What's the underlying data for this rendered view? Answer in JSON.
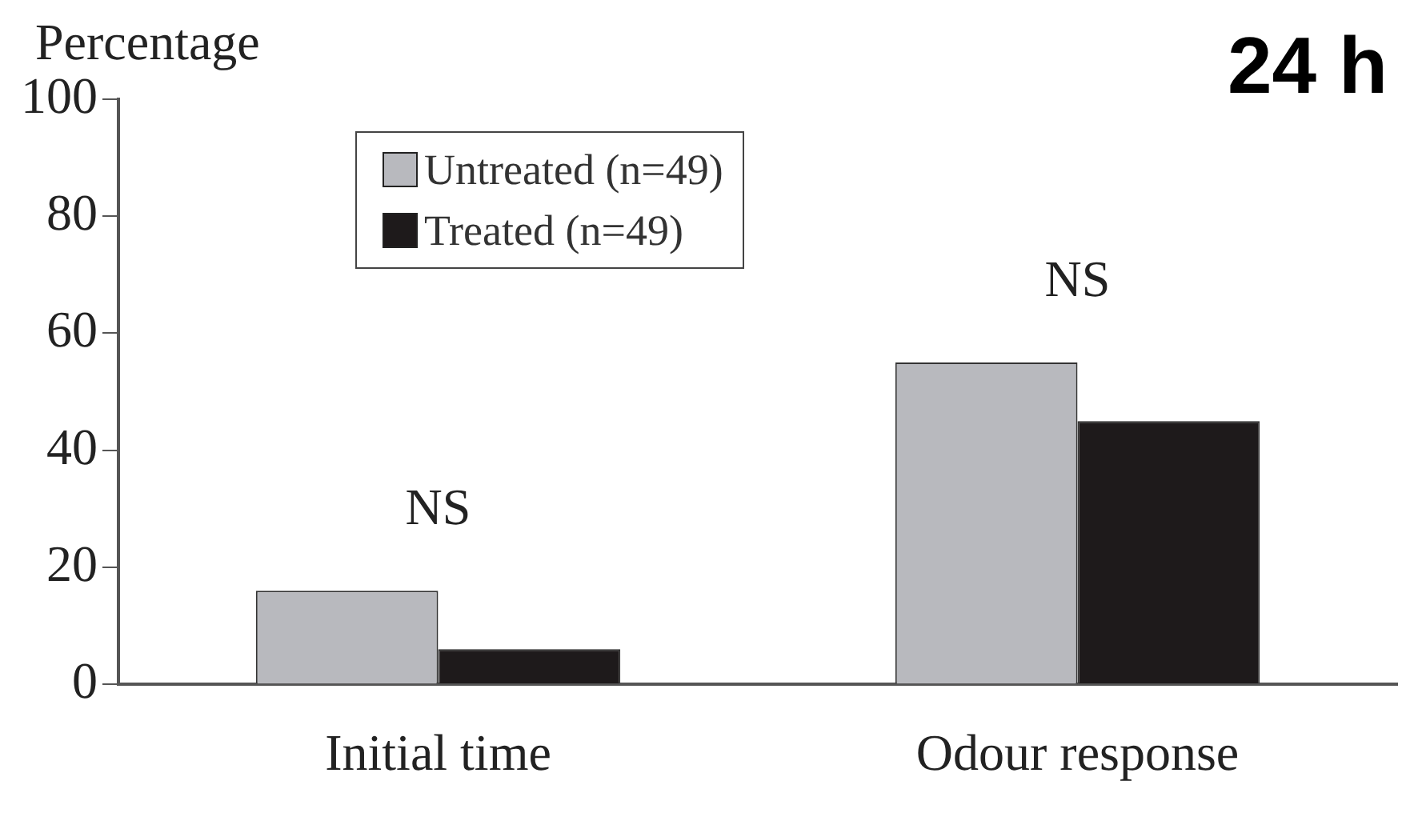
{
  "chart_data": {
    "type": "bar",
    "title": "24 h",
    "ylabel": "Percentage",
    "categories": [
      "Initial time",
      "Odour response"
    ],
    "series": [
      {
        "name": "Untreated (n=49)",
        "color": "#b8b9be",
        "values": [
          16,
          55
        ]
      },
      {
        "name": "Treated (n=49)",
        "color": "#1e1a1b",
        "values": [
          6,
          45
        ]
      }
    ],
    "ylim": [
      0,
      100
    ],
    "yticks": [
      0,
      20,
      40,
      60,
      80,
      100
    ],
    "grid": false,
    "legend": "top left",
    "annotations": [
      "NS",
      "NS"
    ]
  }
}
